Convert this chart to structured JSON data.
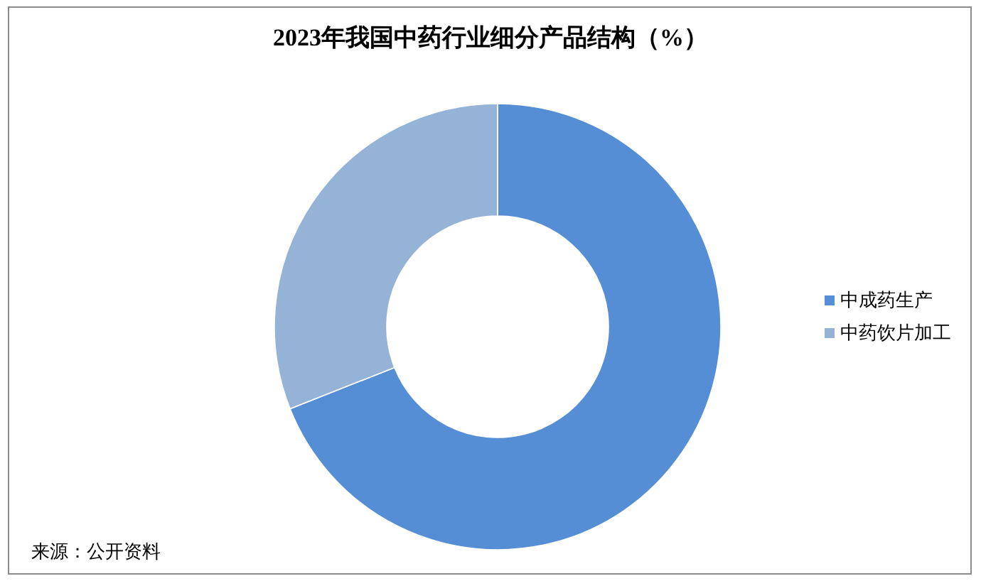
{
  "chart_data": {
    "type": "donut",
    "title": "2023年我国中药行业细分产品结构（%）",
    "categories": [
      "中成药生产",
      "中药饮片加工"
    ],
    "values": [
      69,
      31
    ],
    "colors": [
      "#558ed5",
      "#95b3d7"
    ],
    "legend": "right",
    "annotations": [
      "来源：公开资料"
    ]
  }
}
